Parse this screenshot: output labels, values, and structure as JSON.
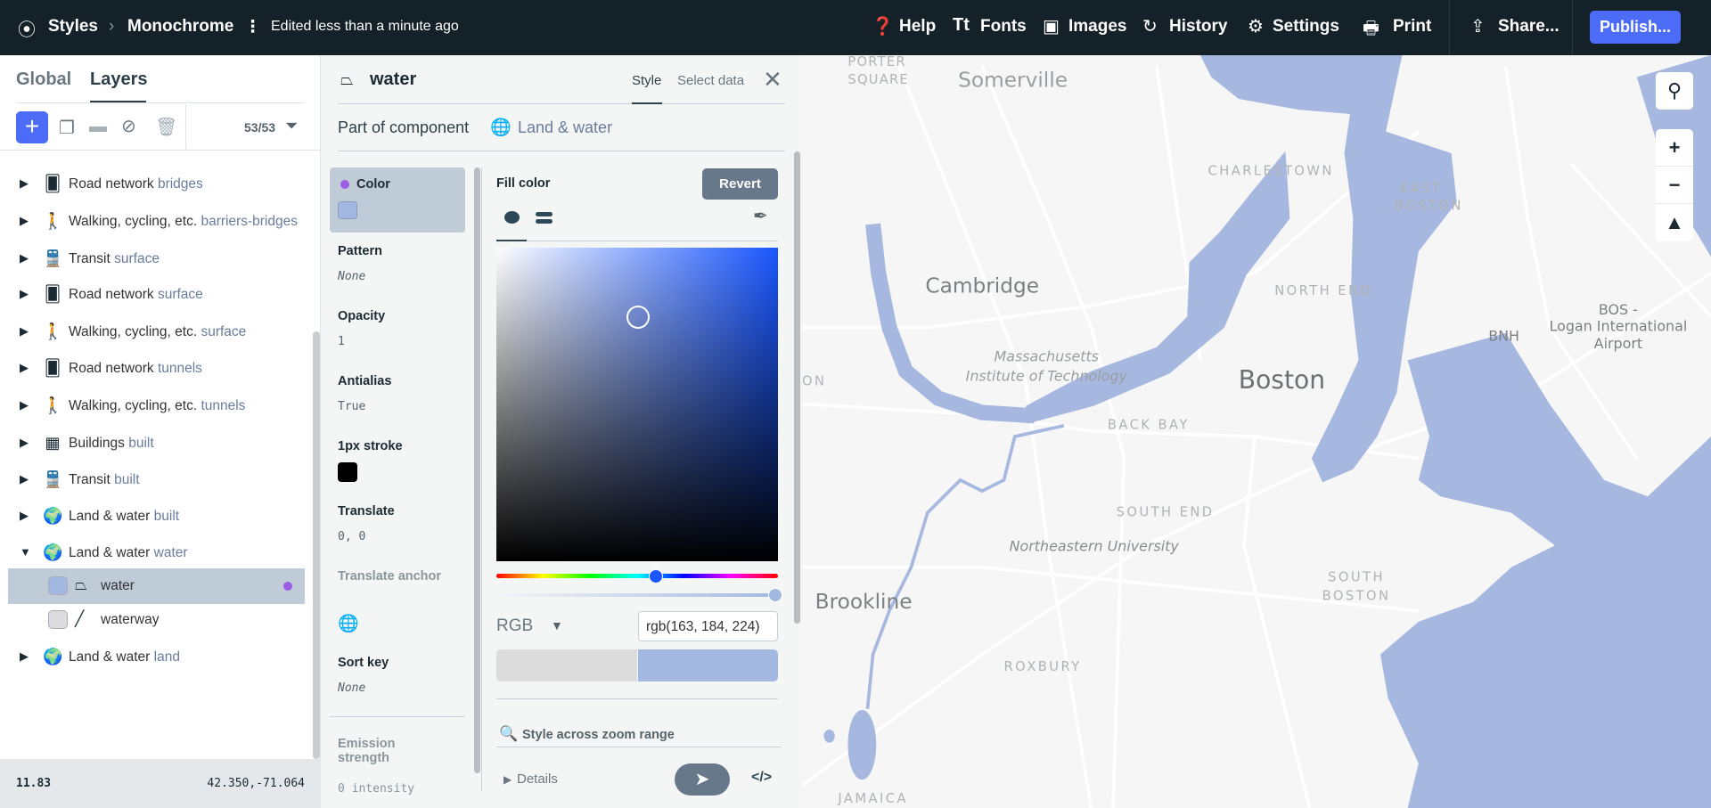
{
  "topbar": {
    "logo": "mapbox-logo",
    "styles": "Styles",
    "style_name": "Monochrome",
    "edited": "Edited less than a minute ago",
    "help": "Help",
    "fonts": "Fonts",
    "images": "Images",
    "history": "History",
    "settings": "Settings",
    "print": "Print",
    "share": "Share...",
    "publish": "Publish..."
  },
  "left": {
    "tabs": [
      "Global",
      "Layers"
    ],
    "active_tab": "Layers",
    "count": "53/53",
    "layers": [
      {
        "name": "Road network",
        "sub": "bridges",
        "icon": "road-icon"
      },
      {
        "name": "Walking, cycling, etc.",
        "sub": "barriers-bridges",
        "icon": "walking-icon"
      },
      {
        "name": "Transit",
        "sub": "surface",
        "icon": "transit-icon"
      },
      {
        "name": "Road network",
        "sub": "surface",
        "icon": "road-icon"
      },
      {
        "name": "Walking, cycling, etc.",
        "sub": "surface",
        "icon": "walking-icon"
      },
      {
        "name": "Road network",
        "sub": "tunnels",
        "icon": "road-icon"
      },
      {
        "name": "Walking, cycling, etc.",
        "sub": "tunnels",
        "icon": "walking-icon"
      },
      {
        "name": "Buildings",
        "sub": "built",
        "icon": "building-icon"
      },
      {
        "name": "Transit",
        "sub": "built",
        "icon": "transit-icon"
      },
      {
        "name": "Land & water",
        "sub": "built",
        "icon": "globe-icon"
      },
      {
        "name": "Land & water",
        "sub": "water",
        "icon": "globe-icon",
        "expanded": true
      },
      {
        "name": "Land & water",
        "sub": "land",
        "icon": "globe-icon"
      }
    ],
    "children": [
      {
        "name": "water",
        "swatch": "#a3b8e0",
        "selected": true
      },
      {
        "name": "waterway",
        "swatch": "#dcdcdc"
      }
    ],
    "status": {
      "zoom": "11.83",
      "coords": "42.350,-71.064"
    }
  },
  "style": {
    "layer": "water",
    "tabs": [
      "Style",
      "Select data"
    ],
    "part_of": "Part of component",
    "component": "Land & water",
    "props": {
      "color": "Color",
      "pattern": "Pattern",
      "pattern_val": "None",
      "opacity": "Opacity",
      "opacity_val": "1",
      "antialias": "Antialias",
      "antialias_val": "True",
      "stroke": "1px stroke",
      "translate": "Translate",
      "translate_val": "0, 0",
      "anchor": "Translate anchor",
      "sort": "Sort key",
      "sort_val": "None",
      "emission": "Emission strength",
      "emission_val": "0 intensity"
    },
    "fill_label": "Fill color",
    "revert": "Revert",
    "mode": "RGB",
    "value": "rgb(163, 184, 224)",
    "zoom_range": "Style across zoom range",
    "details": "Details",
    "colors": {
      "fill": "#a3b8e0",
      "previous": "#dcdcdc",
      "stroke": "#000000",
      "accent": "#4c6cf7",
      "modified": "#9b5de5"
    }
  },
  "map": {
    "labels": {
      "porter1": "PORTER",
      "porter2": "SQUARE",
      "somerville": "Somerville",
      "charlestown": "CHARLESTOWN",
      "east1": "EAST",
      "east2": "BOSTON",
      "cambridge": "Cambridge",
      "northend": "NORTH END",
      "bos1": "BOS -",
      "bos2": "Logan International",
      "bos3": "Airport",
      "bnh": "BNH",
      "mit1": "Massachusetts",
      "mit2": "Institute of Technology",
      "on": "ON",
      "boston": "Boston",
      "backbay": "BACK BAY",
      "southend": "SOUTH END",
      "neu": "Northeastern University",
      "sb1": "SOUTH",
      "sb2": "BOSTON",
      "brookline": "Brookline",
      "roxbury": "ROXBURY",
      "jamaica": "JAMAICA"
    },
    "water_color": "#a6b8e0",
    "land_color": "#f6f6f6"
  }
}
